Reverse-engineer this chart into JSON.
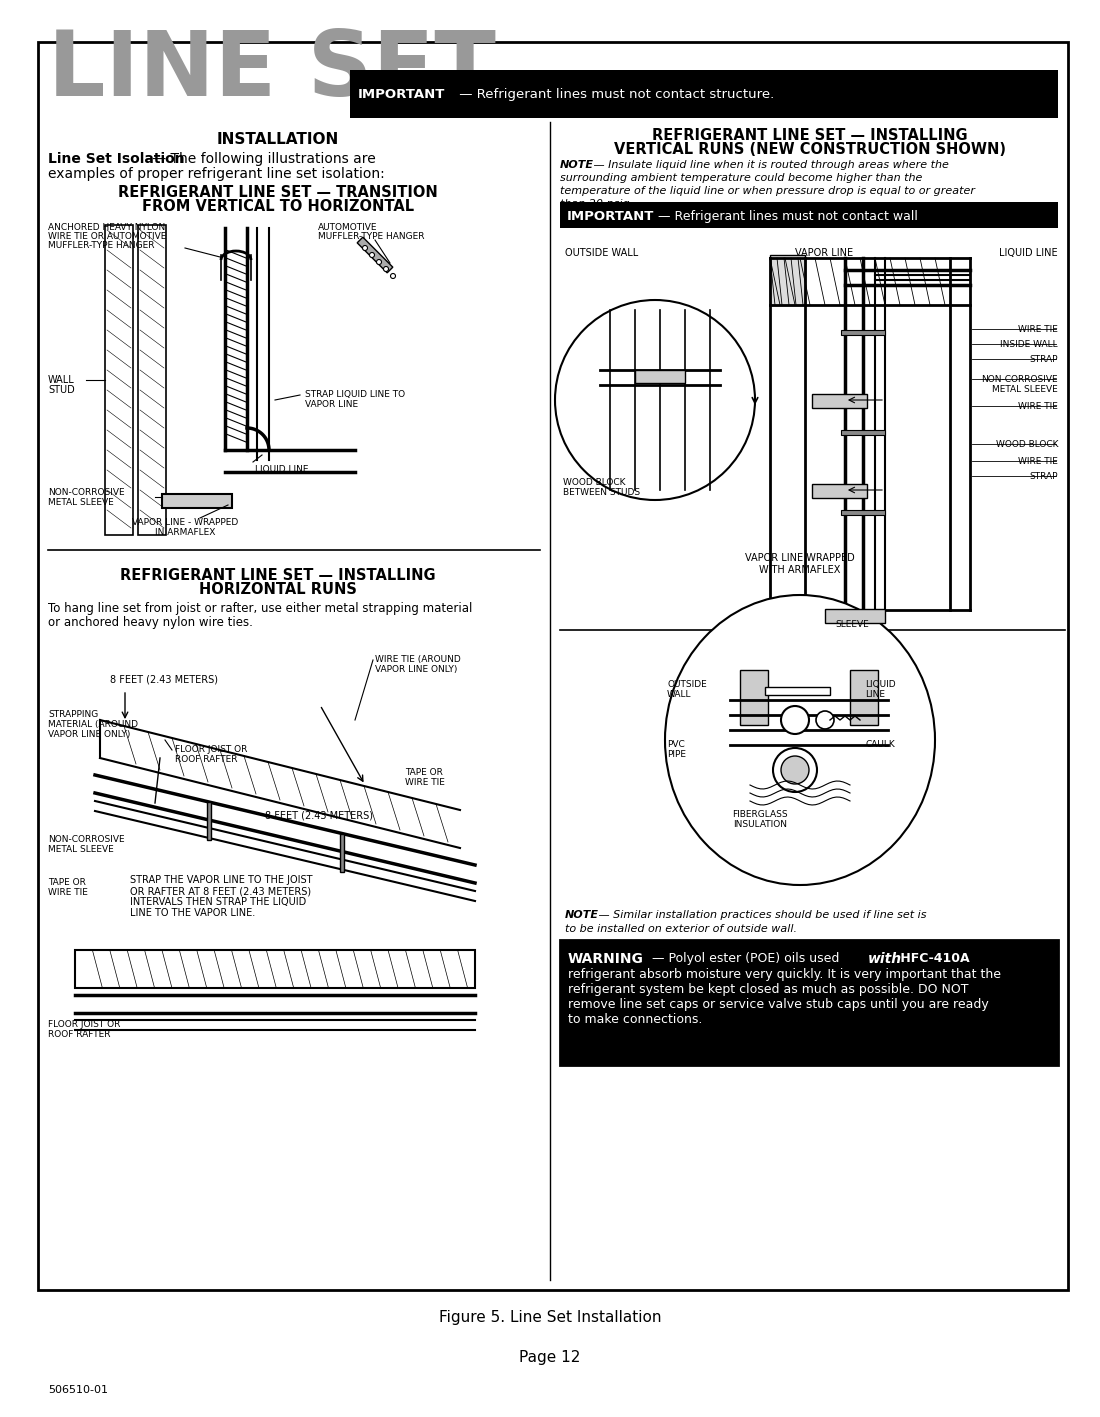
{
  "page_bg": "#ffffff",
  "page_title": "LINE SET",
  "title_color": "#999999",
  "important_top": "IMPORTANT — Refrigerant lines must not contact structure.",
  "important_mid": "IMPORTANT — Refrigerant lines must not contact wall",
  "installation_header": "INSTALLATION",
  "line_set_isolation_bold": "Line Set Isolation",
  "line_set_isolation_rest": " — The following illustrations are",
  "line_set_isolation_2": "examples of proper refrigerant line set isolation:",
  "section1_line1": "REFRIGERANT LINE SET — TRANSITION",
  "section1_line2": "FROM VERTICAL TO HORIZONTAL",
  "section2_line1": "REFRIGERANT LINE SET — INSTALLING",
  "section2_line2": "VERTICAL RUNS (NEW CONSTRUCTION SHOWN)",
  "section3_line1": "REFRIGERANT LINE SET — INSTALLING",
  "section3_line2": "HORIZONTAL RUNS",
  "note_vert_1": "NOTE — Insulate liquid line when it is routed through areas where the",
  "note_vert_2": "surrounding ambient temperature could become higher than the",
  "note_vert_3": "temperature of the liquid line or when pressure drop is equal to or greater",
  "note_vert_4": "than 20 psig.",
  "note_bottom_1": "NOTE — Similar installation practices should be used if line set is",
  "note_bottom_2": "to be installed on exterior of outside wall.",
  "warn_line1a": "WARNING",
  "warn_line1b": " — Polyol ester (POE) oils used ",
  "warn_line1c": "with",
  "warn_line1d": " HFC-410A",
  "warn_line2": "refrigerant absorb moisture very quickly. It is very important that the",
  "warn_line3": "refrigerant system be kept closed as much as possible. DO NOT",
  "warn_line4": "remove line set caps or service valve stub caps until you are ready",
  "warn_line5": "to make connections.",
  "figure_caption": "Figure 5. Line Set Installation",
  "page_number": "Page 12",
  "doc_number": "506510-01",
  "horiz_text1": "To hang line set from joist or rafter, use either metal strapping material",
  "horiz_text2": "or anchored heavy nylon wire ties."
}
